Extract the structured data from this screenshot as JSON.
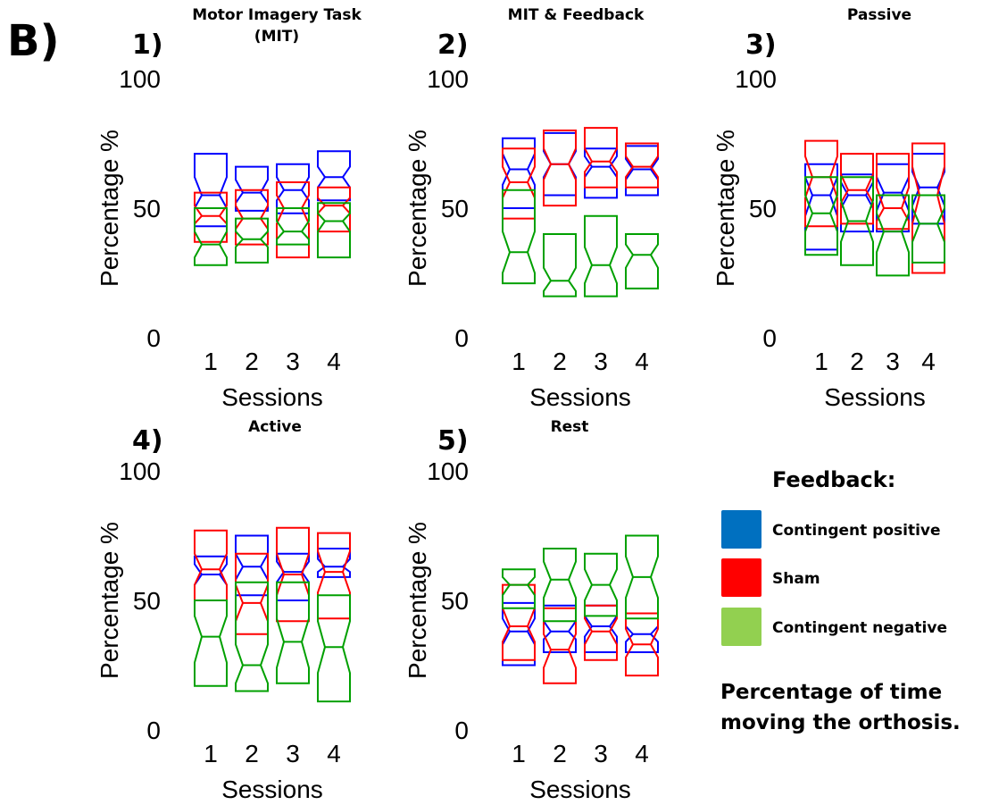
{
  "figure_label": "B)",
  "legend": {
    "title": "Feedback:",
    "items": [
      {
        "label": "Contingent positive",
        "color": "#0070c0"
      },
      {
        "label": "Sham",
        "color": "#ff0000"
      },
      {
        "label": "Contingent negative",
        "color": "#92d050"
      }
    ],
    "caption_line1": "Percentage of time",
    "caption_line2": "moving the orthosis."
  },
  "box_colors": {
    "Contingent positive": "#0000ff",
    "Sham": "#ff0000",
    "Contingent negative": "#00a000"
  },
  "chart_data": [
    {
      "type": "box",
      "panel_number": "1)",
      "title_lines": [
        "Motor Imagery Task",
        "(MIT)"
      ],
      "xlabel": "Sessions",
      "ylabel": "Percentage %",
      "categories": [
        "1",
        "2",
        "3",
        "4"
      ],
      "yticks": [
        "0",
        "50",
        "100"
      ],
      "ylim": [
        0,
        100
      ],
      "grid": false,
      "series": [
        {
          "name": "Contingent positive",
          "boxes": [
            {
              "q1": 43,
              "median": 55,
              "q3": 71,
              "notch_lo": 50,
              "notch_hi": 62
            },
            {
              "q1": 49,
              "median": 56,
              "q3": 66,
              "notch_lo": 52,
              "notch_hi": 61
            },
            {
              "q1": 48,
              "median": 57,
              "q3": 67,
              "notch_lo": 53,
              "notch_hi": 62
            },
            {
              "q1": 53,
              "median": 62,
              "q3": 72,
              "notch_lo": 58,
              "notch_hi": 66
            }
          ]
        },
        {
          "name": "Sham",
          "boxes": [
            {
              "q1": 37,
              "median": 47,
              "q3": 56,
              "notch_lo": 44,
              "notch_hi": 51
            },
            {
              "q1": 36,
              "median": 46,
              "q3": 57,
              "notch_lo": 42,
              "notch_hi": 51
            },
            {
              "q1": 31,
              "median": 50,
              "q3": 60,
              "notch_lo": 44,
              "notch_hi": 55
            },
            {
              "q1": 41,
              "median": 51,
              "q3": 58,
              "notch_lo": 48,
              "notch_hi": 54
            }
          ]
        },
        {
          "name": "Contingent negative",
          "boxes": [
            {
              "q1": 28,
              "median": 36,
              "q3": 50,
              "notch_lo": 31,
              "notch_hi": 41
            },
            {
              "q1": 29,
              "median": 38,
              "q3": 46,
              "notch_lo": 35,
              "notch_hi": 41
            },
            {
              "q1": 36,
              "median": 41,
              "q3": 50,
              "notch_lo": 38,
              "notch_hi": 45
            },
            {
              "q1": 31,
              "median": 45,
              "q3": 52,
              "notch_lo": 41,
              "notch_hi": 48
            }
          ]
        }
      ]
    },
    {
      "type": "box",
      "panel_number": "2)",
      "title_lines": [
        "MIT & Feedback"
      ],
      "xlabel": "Sessions",
      "ylabel": "Percentage %",
      "categories": [
        "1",
        "2",
        "3",
        "4"
      ],
      "yticks": [
        "0",
        "50",
        "100"
      ],
      "ylim": [
        0,
        100
      ],
      "grid": false,
      "series": [
        {
          "name": "Contingent positive",
          "boxes": [
            {
              "q1": 50,
              "median": 65,
              "q3": 77,
              "notch_lo": 59,
              "notch_hi": 71
            },
            {
              "q1": 55,
              "median": 67,
              "q3": 79,
              "notch_lo": 62,
              "notch_hi": 72
            },
            {
              "q1": 54,
              "median": 66,
              "q3": 73,
              "notch_lo": 62,
              "notch_hi": 70
            },
            {
              "q1": 55,
              "median": 65,
              "q3": 74,
              "notch_lo": 61,
              "notch_hi": 69
            }
          ]
        },
        {
          "name": "Sham",
          "boxes": [
            {
              "q1": 46,
              "median": 60,
              "q3": 73,
              "notch_lo": 54,
              "notch_hi": 66
            },
            {
              "q1": 51,
              "median": 67,
              "q3": 80,
              "notch_lo": 61,
              "notch_hi": 73
            },
            {
              "q1": 58,
              "median": 68,
              "q3": 81,
              "notch_lo": 64,
              "notch_hi": 73
            },
            {
              "q1": 58,
              "median": 66,
              "q3": 75,
              "notch_lo": 62,
              "notch_hi": 70
            }
          ]
        },
        {
          "name": "Contingent negative",
          "boxes": [
            {
              "q1": 21,
              "median": 33,
              "q3": 57,
              "notch_lo": 25,
              "notch_hi": 41
            },
            {
              "q1": 16,
              "median": 22,
              "q3": 40,
              "notch_lo": 18,
              "notch_hi": 27
            },
            {
              "q1": 16,
              "median": 28,
              "q3": 47,
              "notch_lo": 21,
              "notch_hi": 35
            },
            {
              "q1": 19,
              "median": 32,
              "q3": 40,
              "notch_lo": 27,
              "notch_hi": 36
            }
          ]
        }
      ]
    },
    {
      "type": "box",
      "panel_number": "3)",
      "title_lines": [
        "Passive"
      ],
      "xlabel": "Sessions",
      "ylabel": "Percentage %",
      "categories": [
        "1",
        "2",
        "3",
        "4"
      ],
      "yticks": [
        "0",
        "50",
        "100"
      ],
      "ylim": [
        0,
        100
      ],
      "grid": false,
      "series": [
        {
          "name": "Contingent positive",
          "boxes": [
            {
              "q1": 34,
              "median": 55,
              "q3": 67,
              "notch_lo": 47,
              "notch_hi": 62
            },
            {
              "q1": 41,
              "median": 55,
              "q3": 63,
              "notch_lo": 50,
              "notch_hi": 60
            },
            {
              "q1": 41,
              "median": 56,
              "q3": 67,
              "notch_lo": 49,
              "notch_hi": 62
            },
            {
              "q1": 44,
              "median": 58,
              "q3": 71,
              "notch_lo": 51,
              "notch_hi": 64
            }
          ]
        },
        {
          "name": "Sham",
          "boxes": [
            {
              "q1": 43,
              "median": 62,
              "q3": 76,
              "notch_lo": 54,
              "notch_hi": 70
            },
            {
              "q1": 44,
              "median": 57,
              "q3": 71,
              "notch_lo": 52,
              "notch_hi": 63
            },
            {
              "q1": 42,
              "median": 50,
              "q3": 71,
              "notch_lo": 45,
              "notch_hi": 58
            },
            {
              "q1": 25,
              "median": 55,
              "q3": 75,
              "notch_lo": 44,
              "notch_hi": 66
            }
          ]
        },
        {
          "name": "Contingent negative",
          "boxes": [
            {
              "q1": 32,
              "median": 48,
              "q3": 62,
              "notch_lo": 41,
              "notch_hi": 55
            },
            {
              "q1": 28,
              "median": 45,
              "q3": 62,
              "notch_lo": 37,
              "notch_hi": 53
            },
            {
              "q1": 24,
              "median": 41,
              "q3": 55,
              "notch_lo": 33,
              "notch_hi": 48
            },
            {
              "q1": 29,
              "median": 44,
              "q3": 55,
              "notch_lo": 37,
              "notch_hi": 50
            }
          ]
        }
      ]
    },
    {
      "type": "box",
      "panel_number": "4)",
      "title_lines": [
        "Active"
      ],
      "xlabel": "Sessions",
      "ylabel": "Percentage %",
      "categories": [
        "1",
        "2",
        "3",
        "4"
      ],
      "yticks": [
        "0",
        "50",
        "100"
      ],
      "ylim": [
        0,
        100
      ],
      "grid": false,
      "series": [
        {
          "name": "Contingent positive",
          "boxes": [
            {
              "q1": 50,
              "median": 60,
              "q3": 67,
              "notch_lo": 56,
              "notch_hi": 64
            },
            {
              "q1": 52,
              "median": 63,
              "q3": 75,
              "notch_lo": 58,
              "notch_hi": 68
            },
            {
              "q1": 50,
              "median": 61,
              "q3": 68,
              "notch_lo": 57,
              "notch_hi": 65
            },
            {
              "q1": 59,
              "median": 63,
              "q3": 70,
              "notch_lo": 61,
              "notch_hi": 66
            }
          ]
        },
        {
          "name": "Sham",
          "boxes": [
            {
              "q1": 50,
              "median": 62,
              "q3": 77,
              "notch_lo": 56,
              "notch_hi": 68
            },
            {
              "q1": 37,
              "median": 49,
              "q3": 68,
              "notch_lo": 42,
              "notch_hi": 56
            },
            {
              "q1": 42,
              "median": 60,
              "q3": 78,
              "notch_lo": 52,
              "notch_hi": 68
            },
            {
              "q1": 43,
              "median": 61,
              "q3": 76,
              "notch_lo": 53,
              "notch_hi": 69
            }
          ]
        },
        {
          "name": "Contingent negative",
          "boxes": [
            {
              "q1": 17,
              "median": 36,
              "q3": 50,
              "notch_lo": 26,
              "notch_hi": 44
            },
            {
              "q1": 15,
              "median": 25,
              "q3": 57,
              "notch_lo": 18,
              "notch_hi": 33
            },
            {
              "q1": 18,
              "median": 34,
              "q3": 57,
              "notch_lo": 24,
              "notch_hi": 43
            },
            {
              "q1": 11,
              "median": 32,
              "q3": 52,
              "notch_lo": 22,
              "notch_hi": 42
            }
          ]
        }
      ]
    },
    {
      "type": "box",
      "panel_number": "5)",
      "title_lines": [
        "Rest"
      ],
      "xlabel": "Sessions",
      "ylabel": "Percentage %",
      "categories": [
        "1",
        "2",
        "3",
        "4"
      ],
      "yticks": [
        "0",
        "50",
        "100"
      ],
      "ylim": [
        0,
        100
      ],
      "grid": false,
      "series": [
        {
          "name": "Contingent positive",
          "boxes": [
            {
              "q1": 25,
              "median": 38,
              "q3": 49,
              "notch_lo": 33,
              "notch_hi": 43
            },
            {
              "q1": 30,
              "median": 38,
              "q3": 48,
              "notch_lo": 35,
              "notch_hi": 42
            },
            {
              "q1": 30,
              "median": 40,
              "q3": 48,
              "notch_lo": 36,
              "notch_hi": 44
            },
            {
              "q1": 30,
              "median": 37,
              "q3": 45,
              "notch_lo": 34,
              "notch_hi": 40
            }
          ]
        },
        {
          "name": "Sham",
          "boxes": [
            {
              "q1": 27,
              "median": 40,
              "q3": 56,
              "notch_lo": 34,
              "notch_hi": 47
            },
            {
              "q1": 18,
              "median": 31,
              "q3": 47,
              "notch_lo": 24,
              "notch_hi": 37
            },
            {
              "q1": 27,
              "median": 38,
              "q3": 48,
              "notch_lo": 33,
              "notch_hi": 43
            },
            {
              "q1": 21,
              "median": 33,
              "q3": 45,
              "notch_lo": 28,
              "notch_hi": 39
            }
          ]
        },
        {
          "name": "Contingent negative",
          "boxes": [
            {
              "q1": 47,
              "median": 56,
              "q3": 62,
              "notch_lo": 52,
              "notch_hi": 59
            },
            {
              "q1": 42,
              "median": 58,
              "q3": 70,
              "notch_lo": 51,
              "notch_hi": 65
            },
            {
              "q1": 44,
              "median": 56,
              "q3": 68,
              "notch_lo": 50,
              "notch_hi": 62
            },
            {
              "q1": 43,
              "median": 59,
              "q3": 75,
              "notch_lo": 51,
              "notch_hi": 67
            }
          ]
        }
      ]
    }
  ]
}
